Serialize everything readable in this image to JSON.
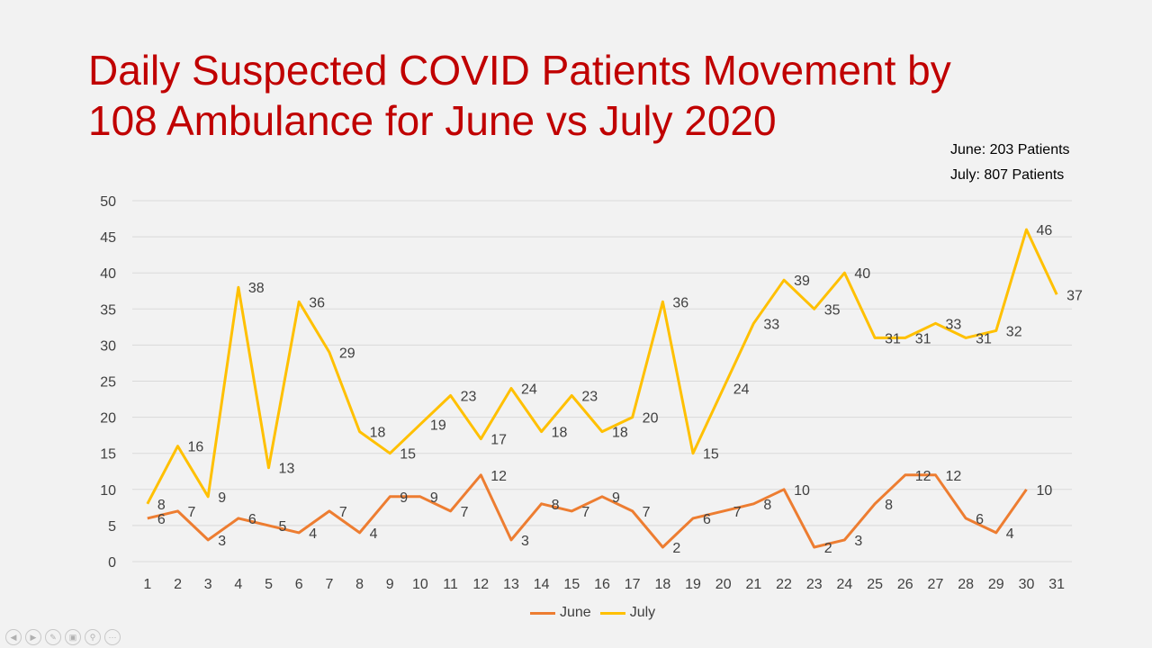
{
  "title": {
    "line1": "Daily Suspected COVID Patients Movement by",
    "line2": "108 Ambulance for June vs July 2020"
  },
  "totals": {
    "june": "June: 203 Patients",
    "july": "July: 807 Patients"
  },
  "colors": {
    "title": "#c00000",
    "june": "#ed7d31",
    "july": "#ffc000",
    "grid": "#d9d9d9",
    "text": "#404040"
  },
  "chart_data": {
    "type": "line",
    "x": [
      1,
      2,
      3,
      4,
      5,
      6,
      7,
      8,
      9,
      10,
      11,
      12,
      13,
      14,
      15,
      16,
      17,
      18,
      19,
      20,
      21,
      22,
      23,
      24,
      25,
      26,
      27,
      28,
      29,
      30,
      31
    ],
    "ylim": [
      0,
      50
    ],
    "yticks": [
      0,
      5,
      10,
      15,
      20,
      25,
      30,
      35,
      40,
      45,
      50
    ],
    "grid": true,
    "legend": "bottom",
    "series": [
      {
        "name": "June",
        "color": "#ed7d31",
        "values": [
          6,
          7,
          3,
          6,
          5,
          4,
          7,
          4,
          9,
          9,
          7,
          12,
          3,
          8,
          7,
          9,
          7,
          2,
          6,
          7,
          8,
          10,
          2,
          3,
          8,
          12,
          12,
          6,
          4,
          10,
          null
        ]
      },
      {
        "name": "July",
        "color": "#ffc000",
        "values": [
          8,
          16,
          9,
          38,
          13,
          36,
          29,
          18,
          15,
          19,
          23,
          17,
          24,
          18,
          23,
          18,
          20,
          36,
          15,
          24,
          33,
          39,
          35,
          40,
          31,
          31,
          33,
          31,
          32,
          46,
          37
        ]
      }
    ]
  },
  "nav": {
    "icons": [
      "prev-icon",
      "next-icon",
      "pen-icon",
      "slides-icon",
      "zoom-icon",
      "more-icon"
    ]
  }
}
